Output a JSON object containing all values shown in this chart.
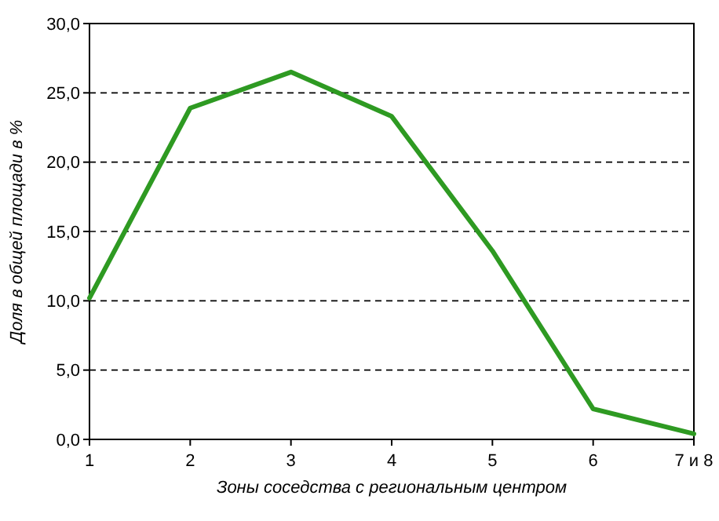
{
  "chart_data": {
    "type": "line",
    "xlabel": "Зоны соседства с региональным центром",
    "ylabel": "Доля в общей площади в %",
    "categories": [
      "1",
      "2",
      "3",
      "4",
      "5",
      "6",
      "7 и 8"
    ],
    "series": [
      {
        "color": "#2e9a22",
        "values": [
          10.2,
          23.9,
          26.5,
          23.3,
          13.6,
          2.2,
          0.4
        ]
      }
    ],
    "ylim": [
      0,
      30
    ],
    "yticks": [
      {
        "value": 0,
        "label": "0,0"
      },
      {
        "value": 5,
        "label": "5,0"
      },
      {
        "value": 10,
        "label": "10,0"
      },
      {
        "value": 15,
        "label": "15,0"
      },
      {
        "value": 20,
        "label": "20,0"
      },
      {
        "value": 25,
        "label": "25,0"
      },
      {
        "value": 30,
        "label": "30,0"
      }
    ],
    "grid": "y",
    "line_style": "solid"
  }
}
